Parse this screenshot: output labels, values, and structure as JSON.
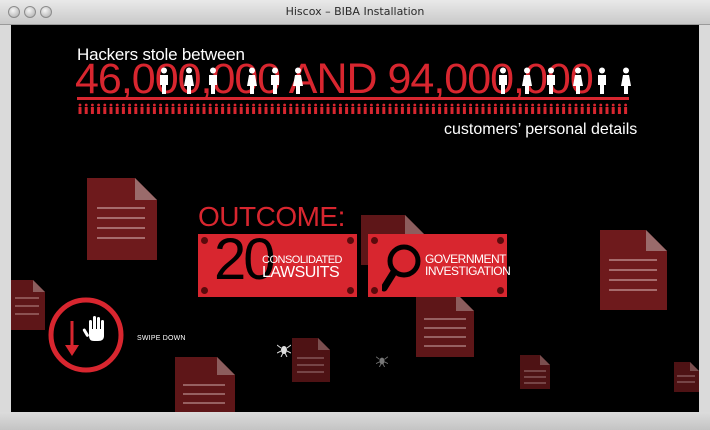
{
  "window": {
    "title": "Hiscox – BIBA Installation"
  },
  "headline": "Hackers stole between",
  "big_number": "46,000,000 AND 94,000,000",
  "subline": "customers’ personal details",
  "outcome": {
    "title": "OUTCOME:",
    "panel_left": {
      "number": "20",
      "line1": "CONSOLIDATED",
      "line2": "LAWSUITS"
    },
    "panel_right": {
      "line1": "GOVERNMENT",
      "line2": "INVESTIGATION"
    }
  },
  "swipe": {
    "label": "SWIPE DOWN"
  },
  "colors": {
    "accent": "#d8262f",
    "background": "#000000",
    "document": "#6e1a1c"
  },
  "icons": [
    "person-figure-icon",
    "document-icon",
    "magnifier-icon",
    "hand-icon",
    "down-arrow-icon",
    "spider-icon"
  ]
}
